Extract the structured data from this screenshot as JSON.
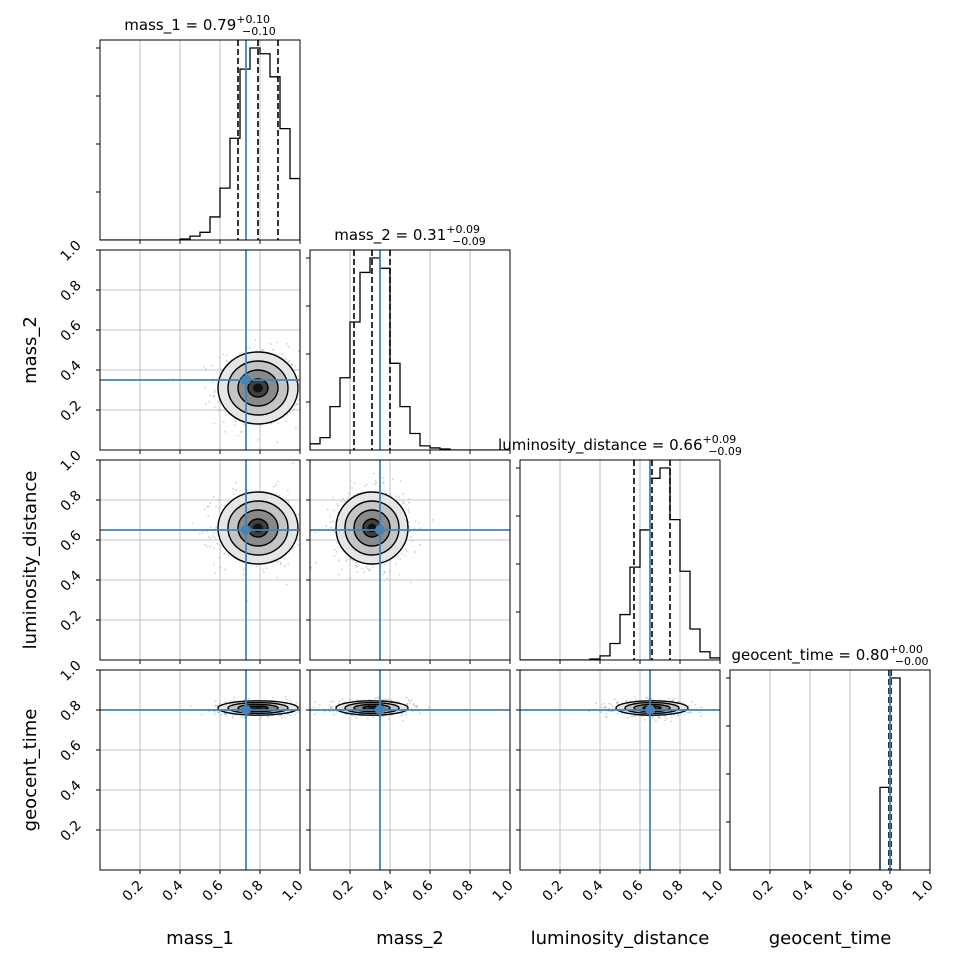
{
  "chart_data": {
    "type": "corner",
    "parameters": [
      "mass_1",
      "mass_2",
      "luminosity_distance",
      "geocent_time"
    ],
    "axis_labels": [
      "mass_1",
      "mass_2",
      "luminosity_distance",
      "geocent_time"
    ],
    "range": [
      0,
      1
    ],
    "ticks": [
      0.2,
      0.4,
      0.6,
      0.8,
      1.0
    ],
    "tick_labels": [
      "0.2",
      "0.4",
      "0.6",
      "0.8",
      "1.0"
    ],
    "grid": true,
    "truth_color": "#4682b4",
    "hist_color": "#000000",
    "titles": [
      {
        "name": "mass_1",
        "median": "0.79",
        "plus": "+0.10",
        "minus": "−0.10"
      },
      {
        "name": "mass_2",
        "median": "0.31",
        "plus": "+0.09",
        "minus": "−0.09"
      },
      {
        "name": "luminosity_distance",
        "median": "0.66",
        "plus": "+0.09",
        "minus": "−0.09"
      },
      {
        "name": "geocent_time",
        "median": "0.80",
        "plus": "+0.00",
        "minus": "−0.00"
      }
    ],
    "truths": [
      0.73,
      0.35,
      0.65,
      0.8
    ],
    "quantiles": [
      [
        0.69,
        0.79,
        0.89
      ],
      [
        0.22,
        0.31,
        0.4
      ],
      [
        0.57,
        0.66,
        0.75
      ],
      [
        0.795,
        0.8,
        0.805
      ]
    ],
    "histograms": [
      {
        "bins": [
          0.4,
          0.45,
          0.5,
          0.55,
          0.6,
          0.65,
          0.7,
          0.75,
          0.8,
          0.85,
          0.9,
          0.95,
          1.0
        ],
        "counts": [
          0.005,
          0.02,
          0.04,
          0.12,
          0.27,
          0.53,
          0.89,
          1.0,
          0.97,
          0.85,
          0.58,
          0.32
        ]
      },
      {
        "bins": [
          0.0,
          0.05,
          0.1,
          0.15,
          0.2,
          0.25,
          0.3,
          0.35,
          0.4,
          0.45,
          0.5,
          0.55,
          0.6,
          0.65,
          0.7,
          0.75,
          0.8,
          0.85,
          0.9,
          0.95,
          1.0
        ],
        "counts": [
          0.03,
          0.06,
          0.21,
          0.35,
          0.62,
          0.86,
          0.93,
          0.88,
          0.42,
          0.21,
          0.08,
          0.02,
          0.01,
          0.005,
          0,
          0,
          0,
          0,
          0,
          0
        ]
      },
      {
        "bins": [
          0.35,
          0.4,
          0.45,
          0.5,
          0.55,
          0.6,
          0.65,
          0.7,
          0.75,
          0.8,
          0.85,
          0.9,
          0.95,
          1.0
        ],
        "counts": [
          0.005,
          0.02,
          0.08,
          0.22,
          0.45,
          0.63,
          0.88,
          0.93,
          0.68,
          0.43,
          0.15,
          0.04,
          0.01
        ]
      },
      {
        "bins": [
          0.75,
          0.8,
          0.85
        ],
        "counts": [
          0.37,
          0.86
        ]
      }
    ],
    "densities": [
      {
        "x": 1,
        "y": 0,
        "center": [
          0.79,
          0.31
        ],
        "sigma": [
          0.1,
          0.09
        ]
      },
      {
        "x": 2,
        "y": 0,
        "center": [
          0.79,
          0.66
        ],
        "sigma": [
          0.1,
          0.09
        ]
      },
      {
        "x": 2,
        "y": 1,
        "center": [
          0.31,
          0.66
        ],
        "sigma": [
          0.09,
          0.09
        ]
      },
      {
        "x": 3,
        "y": 0,
        "center": [
          0.79,
          0.81
        ],
        "sigma": [
          0.1,
          0.018
        ]
      },
      {
        "x": 3,
        "y": 1,
        "center": [
          0.31,
          0.81
        ],
        "sigma": [
          0.09,
          0.018
        ]
      },
      {
        "x": 3,
        "y": 2,
        "center": [
          0.66,
          0.81
        ],
        "sigma": [
          0.09,
          0.018
        ]
      }
    ]
  }
}
